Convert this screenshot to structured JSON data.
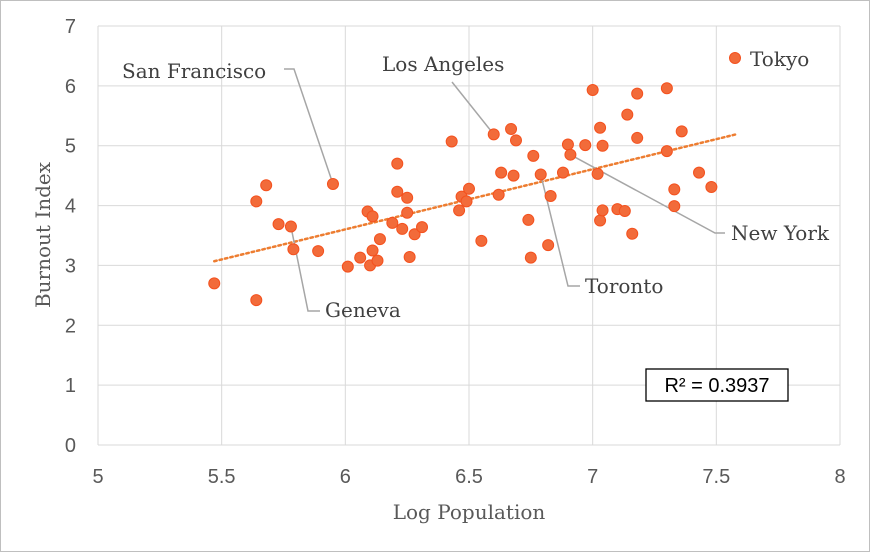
{
  "chart_data": {
    "type": "scatter",
    "title": "",
    "xlabel": "Log Population",
    "ylabel": "Burnout Index",
    "xlim": [
      5,
      8
    ],
    "ylim": [
      0,
      7
    ],
    "x_ticks": [
      "5",
      "5.5",
      "6",
      "6.5",
      "7",
      "7.5",
      "8"
    ],
    "y_ticks": [
      "0",
      "1",
      "2",
      "3",
      "4",
      "5",
      "6",
      "7"
    ],
    "grid": true,
    "legend": {
      "position": "top-right",
      "entries": [
        "Tokyo"
      ]
    },
    "marker_color": "#f4511e",
    "marker_fill": "#f26b3a",
    "trendline": {
      "type": "linear",
      "style": "dotted",
      "color": "#ed7d31",
      "x_range": [
        5.47,
        7.58
      ],
      "y_start": 3.07,
      "y_end": 5.19
    },
    "r_squared_label": "R² = 0.3937",
    "series": [
      {
        "name": "Tokyo",
        "points": [
          [
            5.47,
            2.7
          ],
          [
            5.64,
            2.42
          ],
          [
            5.64,
            4.07
          ],
          [
            5.68,
            4.34
          ],
          [
            5.73,
            3.69
          ],
          [
            5.78,
            3.65
          ],
          [
            5.79,
            3.27
          ],
          [
            5.89,
            3.24
          ],
          [
            5.95,
            4.36
          ],
          [
            6.01,
            2.98
          ],
          [
            6.06,
            3.13
          ],
          [
            6.09,
            3.9
          ],
          [
            6.1,
            3.0
          ],
          [
            6.11,
            3.25
          ],
          [
            6.11,
            3.82
          ],
          [
            6.13,
            3.08
          ],
          [
            6.14,
            3.44
          ],
          [
            6.19,
            3.71
          ],
          [
            6.21,
            4.7
          ],
          [
            6.21,
            4.23
          ],
          [
            6.23,
            3.61
          ],
          [
            6.25,
            3.88
          ],
          [
            6.25,
            4.13
          ],
          [
            6.26,
            3.14
          ],
          [
            6.28,
            3.52
          ],
          [
            6.31,
            3.64
          ],
          [
            6.43,
            5.07
          ],
          [
            6.46,
            3.92
          ],
          [
            6.47,
            4.15
          ],
          [
            6.49,
            4.07
          ],
          [
            6.5,
            4.28
          ],
          [
            6.55,
            3.41
          ],
          [
            6.6,
            5.19
          ],
          [
            6.62,
            4.18
          ],
          [
            6.63,
            4.55
          ],
          [
            6.67,
            5.28
          ],
          [
            6.68,
            4.5
          ],
          [
            6.69,
            5.09
          ],
          [
            6.74,
            3.76
          ],
          [
            6.75,
            3.13
          ],
          [
            6.76,
            4.83
          ],
          [
            6.79,
            4.52
          ],
          [
            6.82,
            3.34
          ],
          [
            6.83,
            4.16
          ],
          [
            6.88,
            4.55
          ],
          [
            6.9,
            5.02
          ],
          [
            6.91,
            4.85
          ],
          [
            6.97,
            5.01
          ],
          [
            7.0,
            5.93
          ],
          [
            7.02,
            4.53
          ],
          [
            7.03,
            3.75
          ],
          [
            7.03,
            5.3
          ],
          [
            7.04,
            3.92
          ],
          [
            7.04,
            5.0
          ],
          [
            7.1,
            3.94
          ],
          [
            7.13,
            3.91
          ],
          [
            7.14,
            5.52
          ],
          [
            7.16,
            3.53
          ],
          [
            7.18,
            5.13
          ],
          [
            7.18,
            5.87
          ],
          [
            7.3,
            5.96
          ],
          [
            7.3,
            4.91
          ],
          [
            7.33,
            3.99
          ],
          [
            7.33,
            4.27
          ],
          [
            7.36,
            5.24
          ],
          [
            7.43,
            4.55
          ],
          [
            7.48,
            4.31
          ]
        ]
      }
    ],
    "annotations": [
      {
        "text": "San Francisco",
        "point": [
          5.95,
          4.36
        ]
      },
      {
        "text": "Los Angeles",
        "point": [
          6.6,
          5.19
        ]
      },
      {
        "text": "New York",
        "point": [
          6.91,
          4.85
        ]
      },
      {
        "text": "Toronto",
        "point": [
          6.79,
          4.52
        ]
      },
      {
        "text": "Geneva",
        "point": [
          5.78,
          3.65
        ]
      }
    ]
  }
}
